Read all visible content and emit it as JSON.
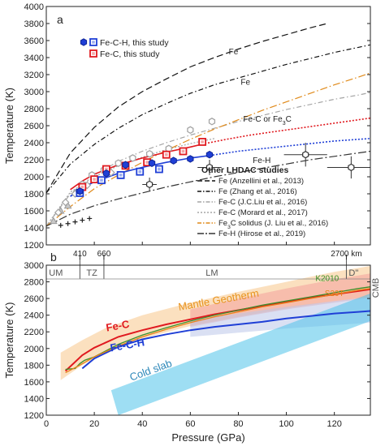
{
  "chart_data": [
    {
      "panel": "a",
      "type": "scatter",
      "ylabel": "Temperature (K)",
      "xlim": [
        0,
        135
      ],
      "ylim": [
        1200,
        4000
      ],
      "yticks": [
        1200,
        1400,
        1600,
        1800,
        2000,
        2200,
        2400,
        2600,
        2800,
        3000,
        3200,
        3400,
        3600,
        3800,
        4000
      ],
      "legend_data_position": "top-left",
      "legend_studies_position": "bottom-right",
      "legend_data": [
        {
          "label": "Fe-C-H, this study",
          "color": "#1f3fd6",
          "markers": [
            "hexagon",
            "square"
          ]
        },
        {
          "label": "Fe-C, this study",
          "color": "#e0191f",
          "markers": [
            "square"
          ]
        }
      ],
      "legend_studies_title": "Other LHDAC studies",
      "legend_studies": [
        {
          "label": "Fe (Anzellini et al., 2013)",
          "style": "dashed-long",
          "color": "#111111"
        },
        {
          "label": "Fe (Zhang et al., 2016)",
          "style": "dash-dot",
          "color": "#111111"
        },
        {
          "label": "Fe-C (J.C.Liu et al., 2016)",
          "style": "dash-dot",
          "color": "#a5a5a5"
        },
        {
          "label": "Fe-C (Morard et al., 2017)",
          "style": "dotted",
          "color": "#a5a5a5"
        },
        {
          "label_parts": [
            "Fe",
            "3",
            "C solidus (J. Liu et al., 2016)"
          ],
          "style": "dash-dot",
          "color": "#e08a1a"
        },
        {
          "label": "Fe-H (Hirose et al., 2019)",
          "style": "dash-dot-long",
          "color": "#333333"
        }
      ],
      "curve_labels": [
        {
          "text": "Fe",
          "x": 76,
          "y": 3440
        },
        {
          "text": "Fe",
          "x": 81,
          "y": 3080
        },
        {
          "text_parts": [
            "Fe-C or Fe",
            "3",
            "C"
          ],
          "x": 82,
          "y": 2650
        },
        {
          "text": "Fe-H",
          "x": 86,
          "y": 2160
        }
      ],
      "series": [
        {
          "name": "Fe (Anzellini et al., 2013)",
          "color": "#111111",
          "dash": "8,4",
          "x": [
            0,
            10,
            20,
            30,
            40,
            50,
            60,
            70,
            80,
            90,
            100,
            110,
            117
          ],
          "y": [
            1810,
            2280,
            2580,
            2820,
            3000,
            3150,
            3290,
            3400,
            3500,
            3590,
            3670,
            3750,
            3800
          ]
        },
        {
          "name": "Fe (Zhang et al., 2016)",
          "color": "#111111",
          "dash": "6,3,1.5,3",
          "x": [
            0,
            10,
            20,
            30,
            40,
            50,
            60,
            70,
            80,
            90,
            100,
            110,
            120,
            130,
            135
          ],
          "y": [
            1810,
            2150,
            2380,
            2570,
            2730,
            2860,
            2980,
            3080,
            3160,
            3240,
            3320,
            3390,
            3460,
            3520,
            3550
          ]
        },
        {
          "name": "Fe-C (J.C.Liu et al., 2016)",
          "color": "#a5a5a5",
          "dash": "6,3,1.5,3",
          "x": [
            0,
            10,
            20,
            30,
            40,
            50,
            60,
            70,
            80,
            90,
            100,
            110,
            120,
            130,
            135
          ],
          "y": [
            1420,
            1800,
            2020,
            2180,
            2300,
            2400,
            2490,
            2570,
            2650,
            2720,
            2790,
            2850,
            2910,
            2960,
            2990
          ]
        },
        {
          "name": "Fe-C (Morard et al., 2017)",
          "color": "#a5a5a5",
          "dash": "2,2",
          "x": [
            0,
            10,
            20,
            30,
            40,
            50,
            60,
            70
          ],
          "y": [
            1420,
            1820,
            2000,
            2130,
            2230,
            2320,
            2390,
            2450
          ]
        },
        {
          "name": "Fe3C solidus (J. Liu et al., 2016)",
          "color": "#e08a1a",
          "dash": "9,3,1.5,3",
          "x": [
            0,
            10,
            20,
            30,
            40,
            50,
            60,
            70,
            80,
            90,
            100,
            110,
            120,
            130,
            135
          ],
          "y": [
            1420,
            1650,
            1860,
            2020,
            2170,
            2310,
            2440,
            2560,
            2670,
            2780,
            2880,
            2980,
            3080,
            3170,
            3220
          ]
        },
        {
          "name": "Fe-H (Hirose et al., 2019)",
          "color": "#333333",
          "dash": "10,3,2,3",
          "x": [
            0,
            10,
            20,
            30,
            40,
            50,
            60,
            70,
            80,
            90,
            100,
            110,
            120,
            130,
            135
          ],
          "y": [
            1420,
            1560,
            1660,
            1740,
            1810,
            1880,
            1940,
            2000,
            2050,
            2100,
            2150,
            2200,
            2240,
            2280,
            2300
          ]
        },
        {
          "name": "Fe-C fit",
          "color": "#e0191f",
          "dash": "",
          "x": [
            10,
            15,
            20,
            30,
            40,
            50,
            60,
            66
          ],
          "y": [
            1850,
            1950,
            2030,
            2140,
            2220,
            2290,
            2350,
            2390
          ]
        },
        {
          "name": "Fe-C extrapolation",
          "color": "#e0191f",
          "dash": "2,2",
          "x": [
            66,
            75,
            85,
            95,
            105,
            115,
            125,
            135
          ],
          "y": [
            2390,
            2440,
            2490,
            2530,
            2570,
            2610,
            2650,
            2690
          ]
        },
        {
          "name": "Fe-C-H fit",
          "color": "#1f3fd6",
          "dash": "",
          "x": [
            10,
            15,
            20,
            30,
            40,
            50,
            60,
            68
          ],
          "y": [
            1770,
            1870,
            1940,
            2040,
            2110,
            2170,
            2220,
            2250
          ]
        },
        {
          "name": "Fe-C-H extrapolation",
          "color": "#1f3fd6",
          "dash": "2,2",
          "x": [
            68,
            80,
            90,
            100,
            110,
            120,
            130,
            135
          ],
          "y": [
            2250,
            2300,
            2330,
            2360,
            2390,
            2420,
            2440,
            2450
          ]
        }
      ],
      "points": {
        "fe_c_h_hexagons": [
          [
            14,
            1830
          ],
          [
            25,
            2040
          ],
          [
            33,
            2140
          ],
          [
            44,
            2160
          ],
          [
            53,
            2190
          ],
          [
            60,
            2210
          ],
          [
            68,
            2260
          ]
        ],
        "fe_c_h_squares": [
          [
            14,
            1810
          ],
          [
            23,
            1960
          ],
          [
            31,
            2020
          ],
          [
            39,
            2060
          ],
          [
            47,
            2090
          ]
        ],
        "fe_c_squares": [
          [
            15,
            1880
          ],
          [
            20,
            1970
          ],
          [
            25,
            2090
          ],
          [
            33,
            2130
          ],
          [
            42,
            2170
          ],
          [
            50,
            2260
          ],
          [
            57,
            2300
          ],
          [
            65,
            2410
          ]
        ],
        "gray_hexagons": [
          [
            15,
            1910
          ],
          [
            19,
            2020
          ],
          [
            24,
            2080
          ],
          [
            30,
            2160
          ],
          [
            36,
            2220
          ],
          [
            43,
            2270
          ],
          [
            51,
            2330
          ],
          [
            60,
            2550
          ],
          [
            69,
            2650
          ]
        ],
        "gray_diamonds": [
          [
            5,
            1580
          ],
          [
            8,
            1700
          ],
          [
            12,
            1800
          ],
          [
            17,
            1900
          ],
          [
            21,
            1980
          ],
          [
            27,
            2050
          ]
        ],
        "gray_triangles": [
          [
            3,
            1480
          ],
          [
            6,
            1600
          ],
          [
            9,
            1660
          ]
        ],
        "black_crosses": [
          [
            6,
            1430
          ],
          [
            9,
            1450
          ],
          [
            12,
            1470
          ],
          [
            15,
            1490
          ],
          [
            18,
            1510
          ]
        ],
        "fe_h_errorbar_points": [
          {
            "x": 43,
            "y": 1910,
            "xerr": 3,
            "yerr": 80
          },
          {
            "x": 68,
            "y": 2110,
            "xerr": 5,
            "yerr": 90
          },
          {
            "x": 108,
            "y": 2260,
            "xerr": 9,
            "yerr": 140
          },
          {
            "x": 127,
            "y": 2110,
            "xerr": 10,
            "yerr": 130
          }
        ]
      }
    },
    {
      "panel": "b",
      "type": "line",
      "xlabel": "Pressure (GPa)",
      "ylabel": "Temperature (K)",
      "xlim": [
        0,
        135
      ],
      "ylim": [
        1200,
        3000
      ],
      "xticks": [
        0,
        20,
        40,
        60,
        80,
        100,
        120
      ],
      "yticks": [
        1200,
        1400,
        1600,
        1800,
        2000,
        2200,
        2400,
        2600,
        2800,
        3000
      ],
      "depth_ticks": [
        {
          "label": "410",
          "x": 14
        },
        {
          "label": "660",
          "x": 24
        },
        {
          "label": "2700 km",
          "x": 125
        }
      ],
      "region_labels": [
        "UM",
        "TZ",
        "LM",
        "D\"",
        "CMB"
      ],
      "region_dividers_x": [
        14,
        24,
        125
      ],
      "region_label_positions": [
        {
          "label": "UM",
          "x": 4
        },
        {
          "label": "TZ",
          "x": 19
        },
        {
          "label": "LM",
          "x": 69
        },
        {
          "label": "D\"",
          "x": 128
        }
      ],
      "geotherm": {
        "label": "Mantle Geotherm",
        "color": "#f7c68a",
        "x": [
          6,
          15,
          25,
          40,
          60,
          80,
          100,
          120,
          135
        ],
        "upper": [
          1950,
          2100,
          2250,
          2400,
          2550,
          2680,
          2800,
          2920,
          2990
        ],
        "lower": [
          1620,
          1800,
          1960,
          2120,
          2270,
          2380,
          2480,
          2570,
          2620
        ]
      },
      "hot_band": {
        "color": "#f39a9a",
        "x": [
          60,
          80,
          100,
          120,
          135
        ],
        "upper": [
          2470,
          2600,
          2720,
          2830,
          2900
        ],
        "lower": [
          2260,
          2370,
          2470,
          2550,
          2610
        ]
      },
      "cold_band": {
        "color": "#bcc7ea",
        "x": [
          60,
          80,
          100,
          120,
          135
        ],
        "upper": [
          2340,
          2420,
          2500,
          2570,
          2620
        ],
        "lower": [
          2140,
          2190,
          2240,
          2280,
          2310
        ]
      },
      "cold_slab": {
        "label": "Cold slab",
        "color": "#4fc3ea",
        "corners": [
          [
            27,
            1500
          ],
          [
            30,
            1200
          ],
          [
            135,
            2330
          ],
          [
            135,
            2660
          ]
        ]
      },
      "series": [
        {
          "name": "Fe-C",
          "color": "#e0191f",
          "x": [
            8,
            15,
            20,
            30,
            40,
            50,
            60,
            70,
            80,
            90,
            100,
            110,
            120,
            130,
            135
          ],
          "y": [
            1730,
            1920,
            2010,
            2140,
            2220,
            2290,
            2350,
            2410,
            2460,
            2510,
            2560,
            2610,
            2650,
            2690,
            2710
          ]
        },
        {
          "name": "Fe-C-H",
          "color": "#1f3fd6",
          "x": [
            15,
            20,
            30,
            40,
            50,
            60,
            70,
            80,
            90,
            100,
            110,
            120,
            130,
            135
          ],
          "y": [
            1760,
            1880,
            2020,
            2110,
            2170,
            2220,
            2260,
            2290,
            2320,
            2360,
            2390,
            2420,
            2440,
            2450
          ]
        },
        {
          "name": "K2010",
          "color": "#3d8f2a",
          "x": [
            8,
            12,
            14,
            16,
            20,
            24,
            30,
            40,
            50,
            60,
            70,
            80,
            90,
            100,
            110,
            120,
            130,
            135
          ],
          "y": [
            1750,
            1760,
            1820,
            1860,
            1900,
            1960,
            2050,
            2160,
            2250,
            2330,
            2400,
            2460,
            2520,
            2570,
            2620,
            2670,
            2720,
            2740
          ]
        },
        {
          "name": "S20T",
          "color": "#e8821a",
          "x": [
            8,
            14,
            20,
            30,
            40,
            50,
            60,
            70,
            80,
            90,
            100,
            110,
            120,
            130,
            135
          ],
          "y": [
            1710,
            1800,
            1900,
            2030,
            2140,
            2230,
            2310,
            2380,
            2440,
            2500,
            2550,
            2600,
            2650,
            2700,
            2720
          ]
        }
      ],
      "line_labels": [
        {
          "text": "Fe-C",
          "x": 30,
          "y": 2230
        },
        {
          "text": "Fe-C-H",
          "x": 34,
          "y": 2000
        },
        {
          "text": "Mantle Geotherm",
          "x": 72,
          "y": 2540
        },
        {
          "text": "Cold slab",
          "x": 44,
          "y": 1700
        },
        {
          "text": "K2010",
          "x": 117,
          "y": 2810
        },
        {
          "text": "S20T",
          "x": 120,
          "y": 2630
        }
      ]
    }
  ]
}
